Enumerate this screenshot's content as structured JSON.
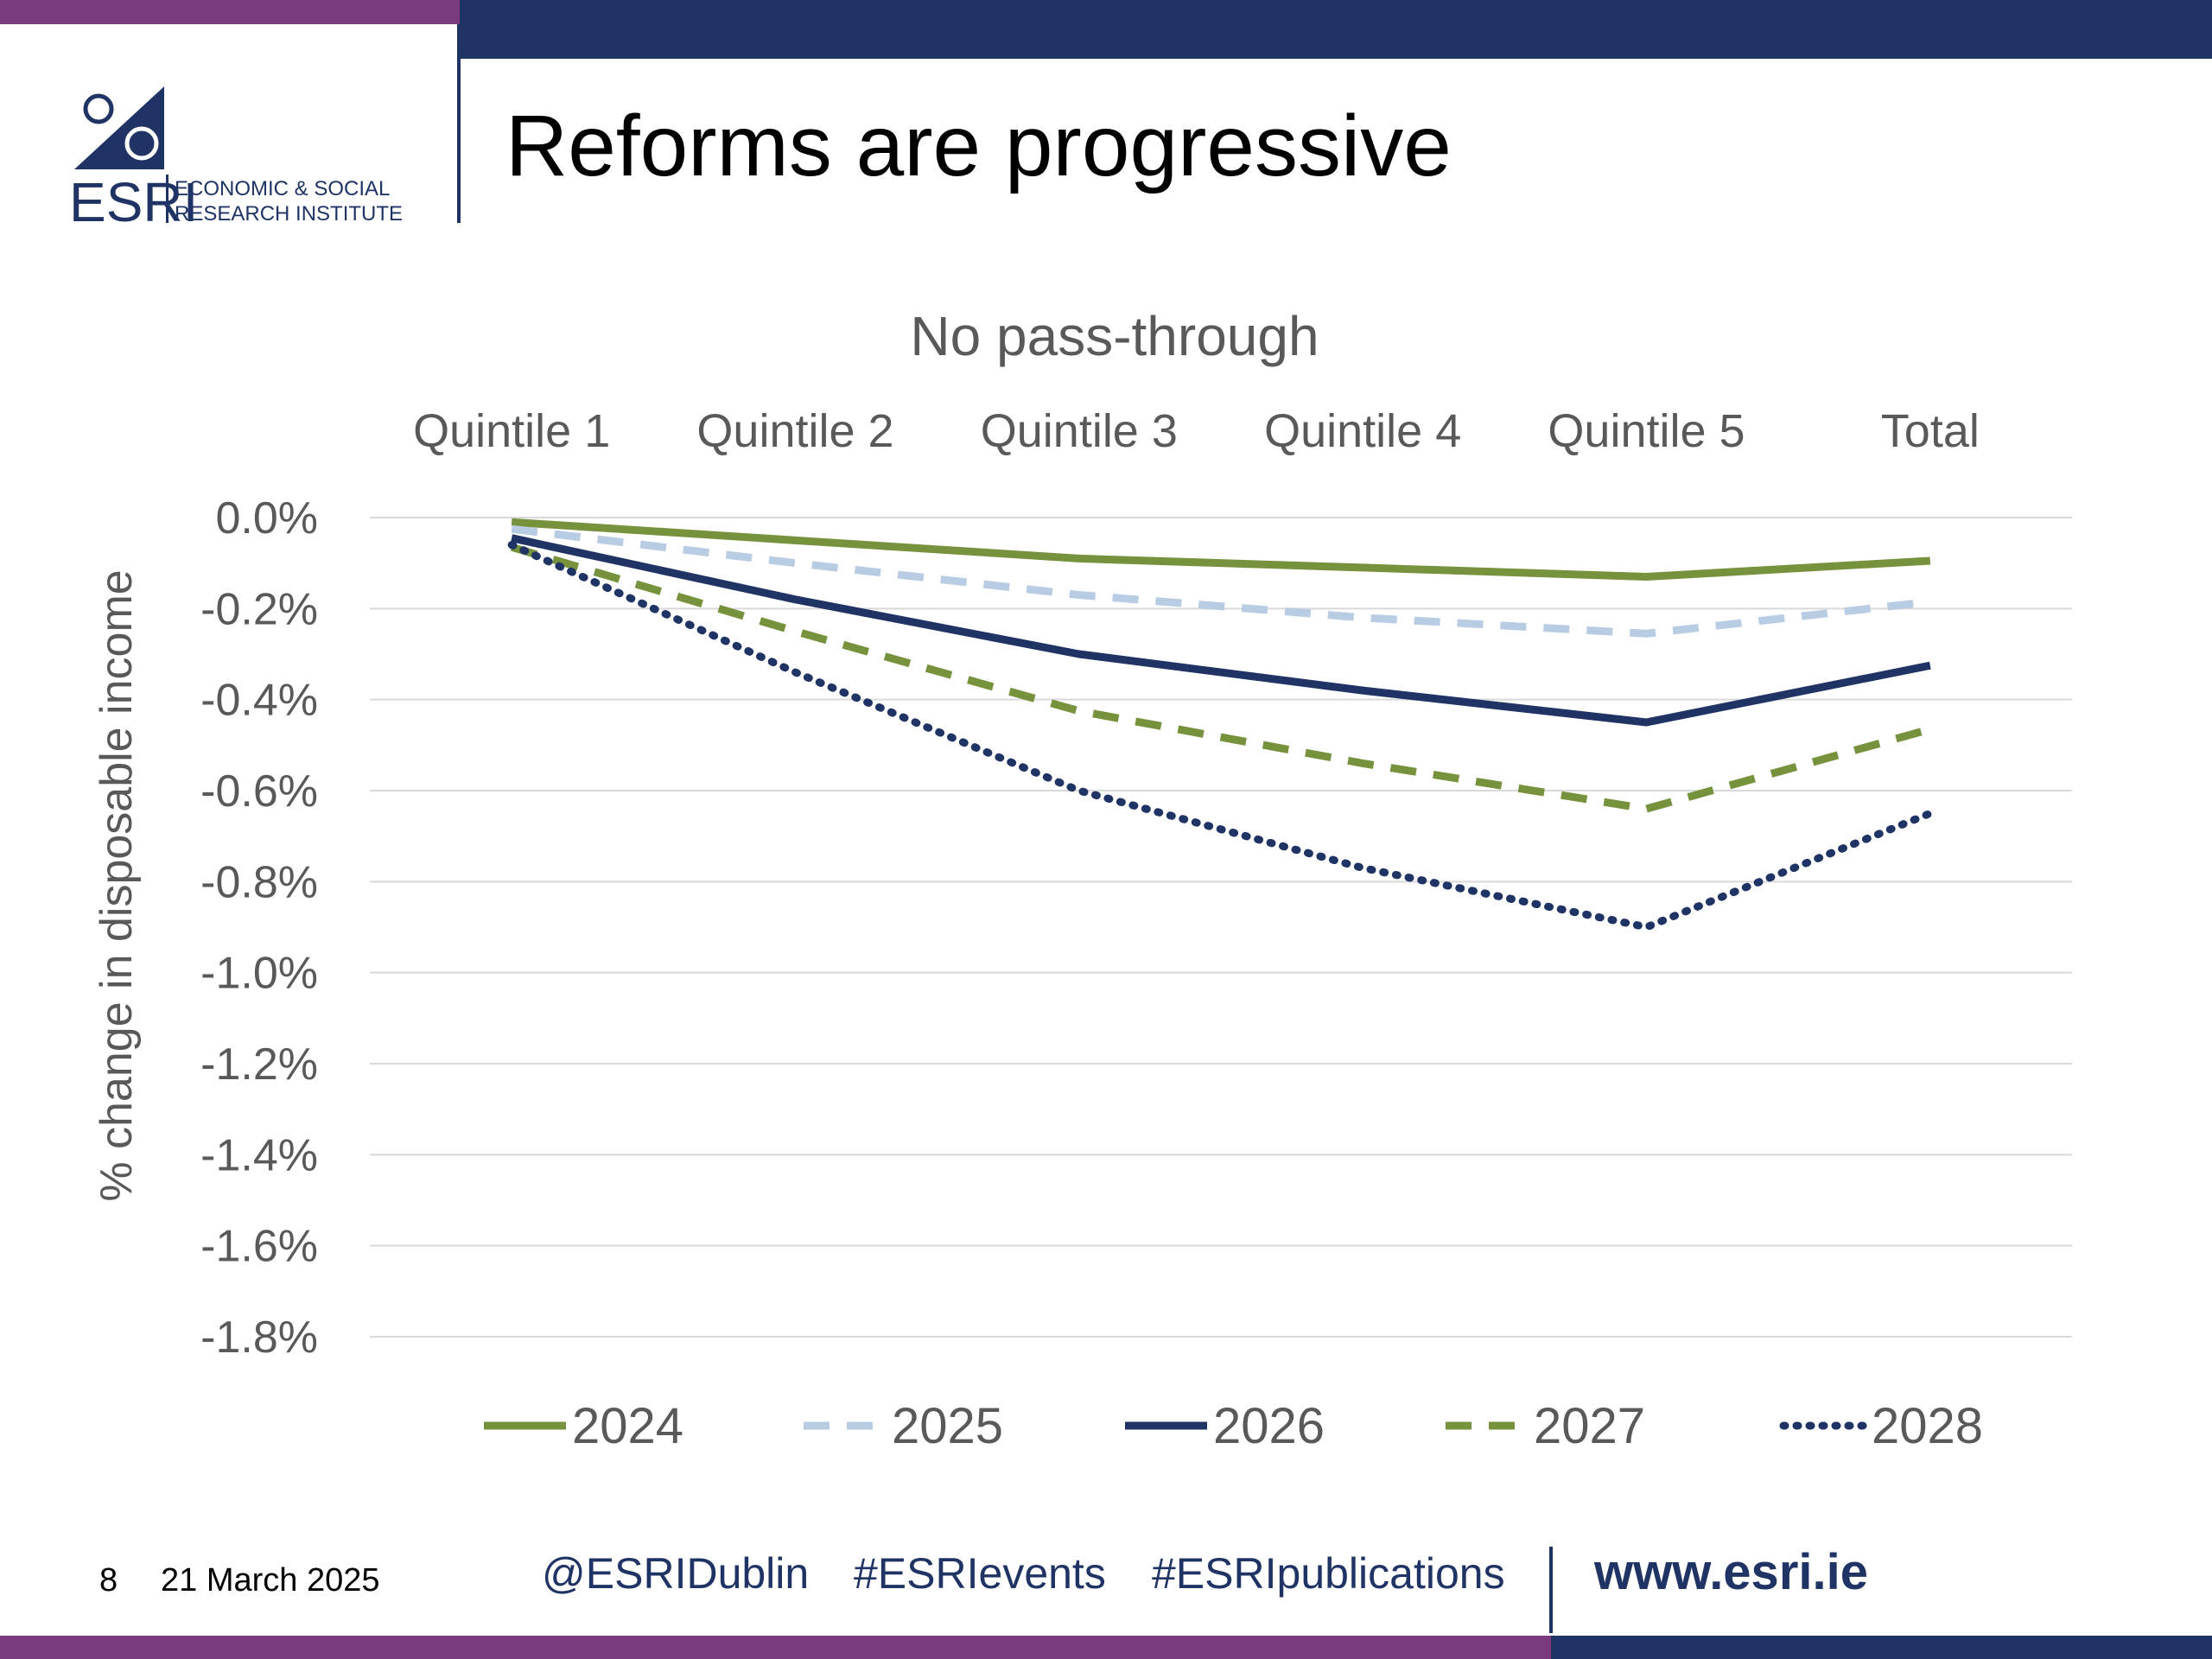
{
  "header": {
    "title": "Reforms are progressive",
    "logo": {
      "acronym": "ESRI",
      "line1": "ECONOMIC & SOCIAL",
      "line2": "RESEARCH INSTITUTE"
    }
  },
  "colors": {
    "purple": "#7a3b7e",
    "navy": "#1f3464",
    "green": "#76923c",
    "light_blue": "#b8cce4",
    "grid": "#d9d9d9",
    "axis_text": "#595959"
  },
  "chart_data": {
    "type": "line",
    "title": "No pass-through",
    "ylabel": "% change in disposable income",
    "xlabel": "",
    "categories": [
      "Quintile 1",
      "Quintile 2",
      "Quintile 3",
      "Quintile 4",
      "Quintile 5",
      "Total"
    ],
    "category_axis_position": "top",
    "ylim": [
      -1.8,
      0
    ],
    "yticks": [
      0,
      -0.2,
      -0.4,
      -0.6,
      -0.8,
      -1.0,
      -1.2,
      -1.4,
      -1.6,
      -1.8
    ],
    "ytick_labels": [
      "0.0%",
      "-0.2%",
      "-0.4%",
      "-0.6%",
      "-0.8%",
      "-1.0%",
      "-1.2%",
      "-1.4%",
      "-1.6%",
      "-1.8%"
    ],
    "grid": true,
    "legend_position": "bottom",
    "series": [
      {
        "name": "2024",
        "values": [
          -0.01,
          -0.05,
          -0.09,
          -0.11,
          -0.13,
          -0.095
        ],
        "color": "#76923c",
        "style": "solid"
      },
      {
        "name": "2025",
        "values": [
          -0.025,
          -0.1,
          -0.17,
          -0.22,
          -0.255,
          -0.185
        ],
        "color": "#b8cce4",
        "style": "dashed"
      },
      {
        "name": "2026",
        "values": [
          -0.045,
          -0.18,
          -0.3,
          -0.38,
          -0.45,
          -0.325
        ],
        "color": "#1f3464",
        "style": "solid"
      },
      {
        "name": "2027",
        "values": [
          -0.065,
          -0.25,
          -0.425,
          -0.54,
          -0.64,
          -0.465
        ],
        "color": "#76923c",
        "style": "dashed"
      },
      {
        "name": "2028",
        "values": [
          -0.06,
          -0.34,
          -0.6,
          -0.77,
          -0.9,
          -0.65
        ],
        "color": "#1f3464",
        "style": "dotted"
      }
    ]
  },
  "footer": {
    "page": "8",
    "date": "21 March 2025",
    "twitter": "@ESRIDublin",
    "events": "#ESRIevents",
    "publications": "#ESRIpublications",
    "website": "www.esri.ie"
  }
}
